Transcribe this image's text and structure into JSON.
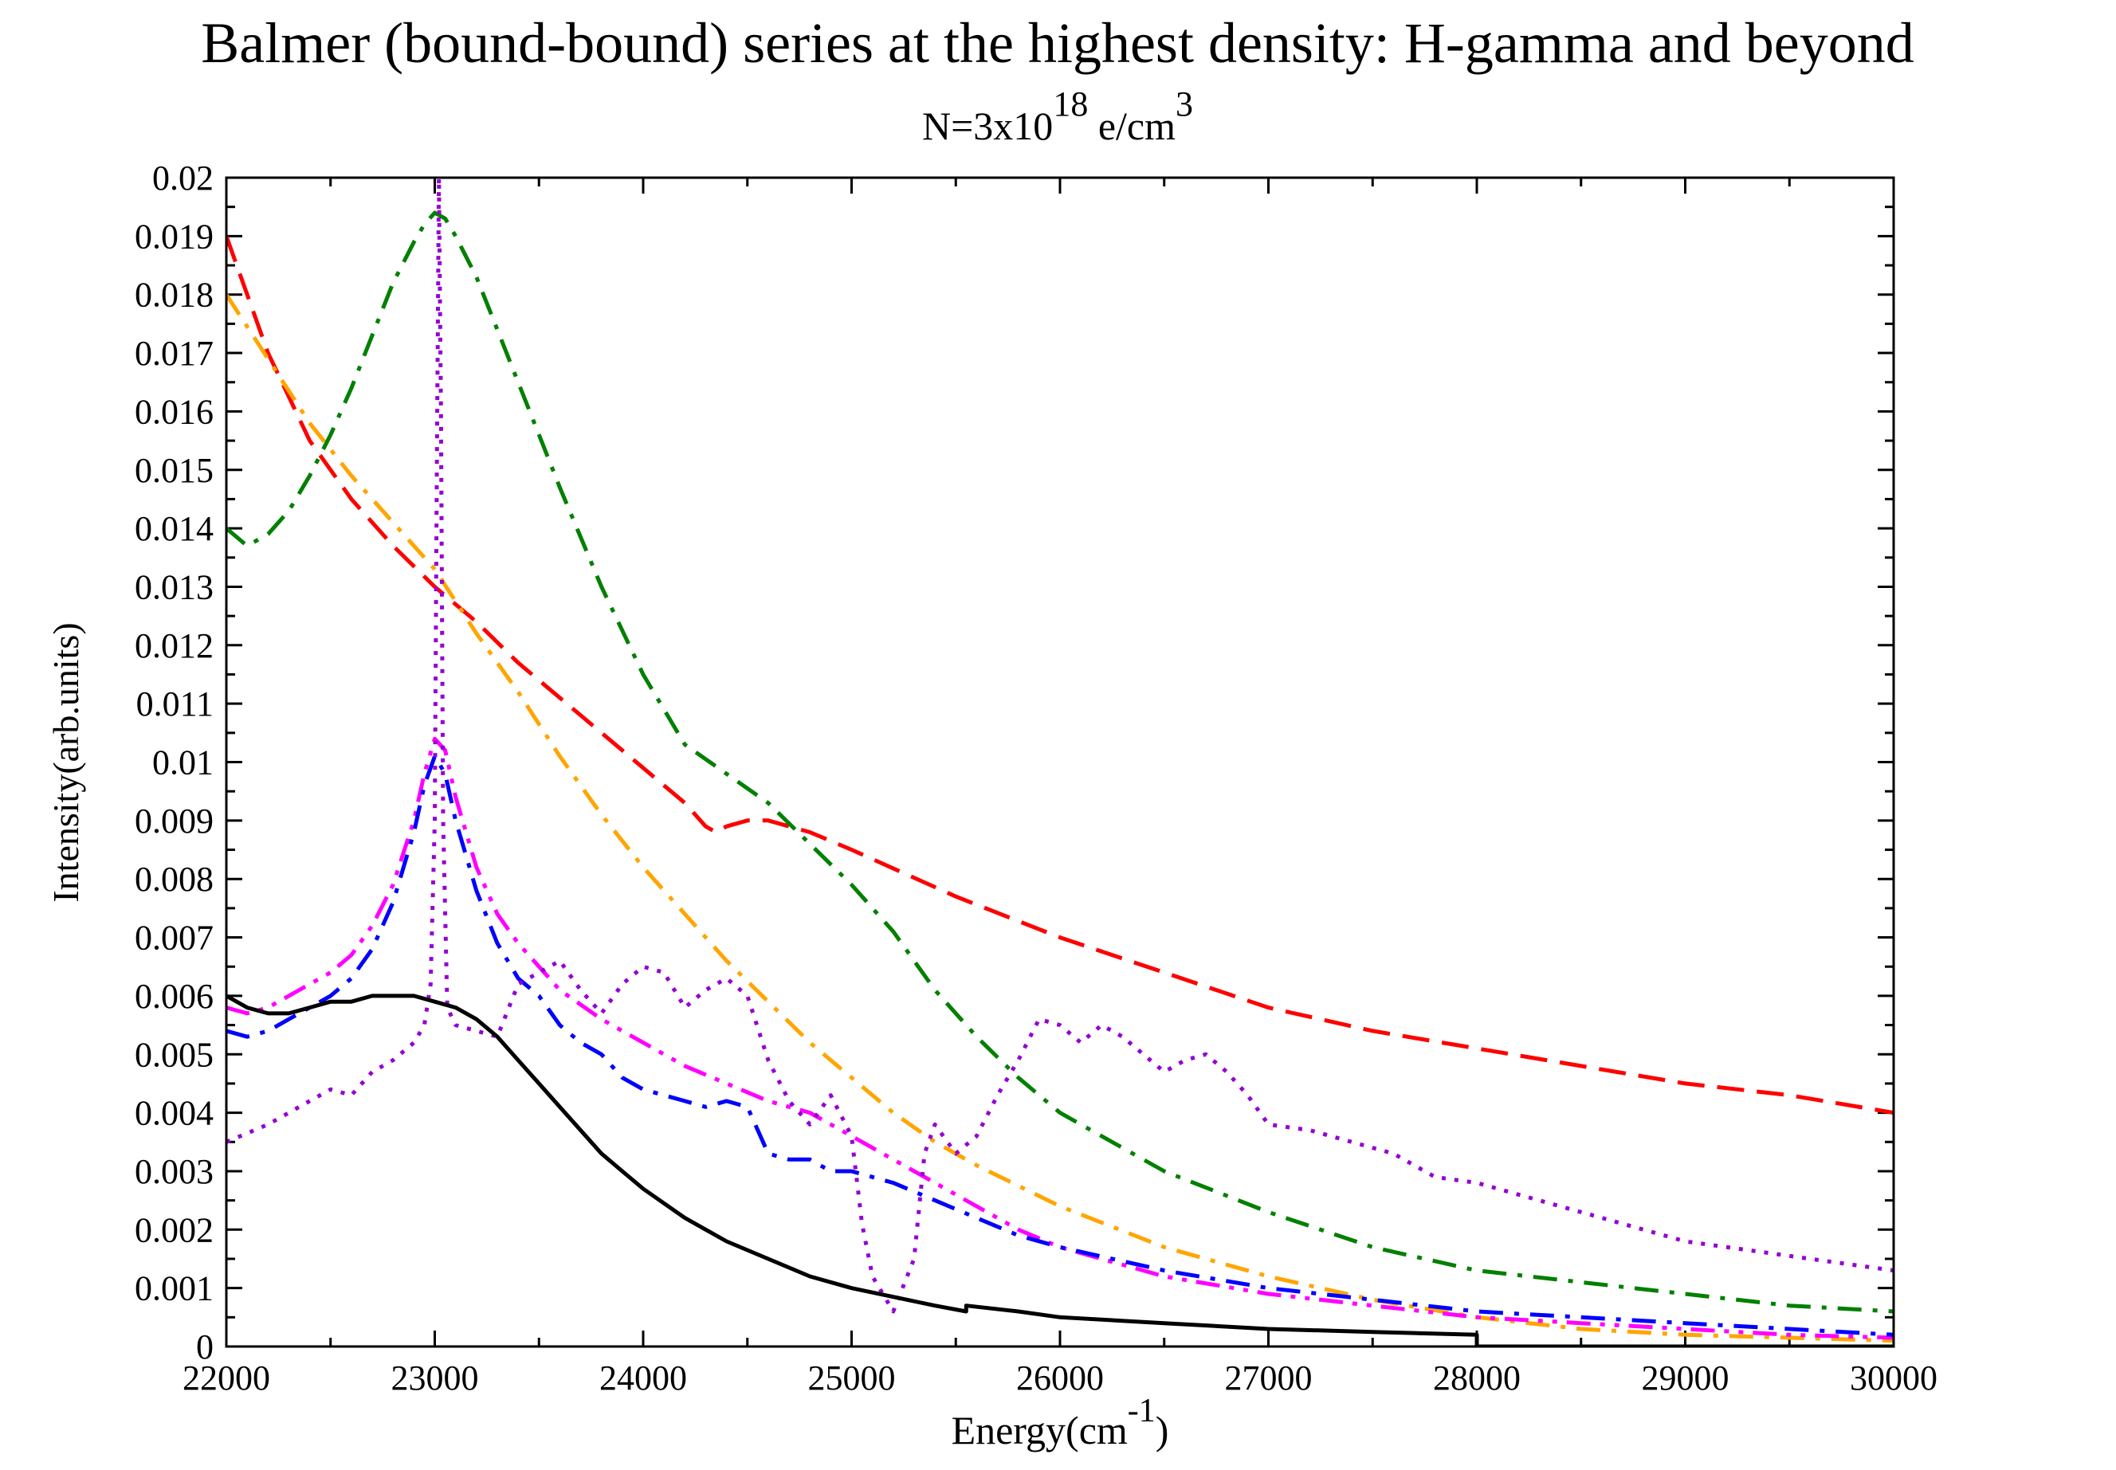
{
  "chart_data": {
    "type": "line",
    "title": "Balmer (bound-bound) series at the highest density: H-gamma and beyond",
    "subtitle": {
      "base": "N=3x10",
      "exp": "18",
      "mid": " e/cm",
      "exp2": "3"
    },
    "xlabel": {
      "base": "Energy(cm",
      "exp": "-1",
      "end": ")"
    },
    "ylabel": "Intensity(arb.units)",
    "xlim": [
      22000,
      30000
    ],
    "ylim": [
      0,
      0.02
    ],
    "xticks": [
      "22000",
      "23000",
      "24000",
      "25000",
      "26000",
      "27000",
      "28000",
      "29000",
      "30000"
    ],
    "yticks": [
      "0",
      "0.001",
      "0.002",
      "0.003",
      "0.004",
      "0.005",
      "0.006",
      "0.007",
      "0.008",
      "0.009",
      "0.01",
      "0.011",
      "0.012",
      "0.013",
      "0.014",
      "0.015",
      "0.016",
      "0.017",
      "0.018",
      "0.019",
      "0.02"
    ],
    "series": [
      {
        "name": "red-dashed",
        "color": "#ff0000",
        "style": "dash",
        "x": [
          22000,
          22200,
          22400,
          22600,
          22800,
          23000,
          23200,
          23400,
          23600,
          23800,
          24000,
          24100,
          24200,
          24300,
          24350,
          24400,
          24500,
          24600,
          24800,
          25000,
          25500,
          26000,
          26500,
          27000,
          27500,
          28000,
          28500,
          29000,
          29500,
          30000
        ],
        "y": [
          0.019,
          0.017,
          0.0155,
          0.0145,
          0.0137,
          0.013,
          0.0124,
          0.0117,
          0.0111,
          0.0105,
          0.0099,
          0.0096,
          0.0093,
          0.0089,
          0.0088,
          0.0089,
          0.009,
          0.009,
          0.0088,
          0.0085,
          0.0077,
          0.007,
          0.0064,
          0.0058,
          0.0054,
          0.0051,
          0.0048,
          0.0045,
          0.0043,
          0.004
        ]
      },
      {
        "name": "orange-dash-dot",
        "color": "#ffa500",
        "style": "dashdot",
        "x": [
          22000,
          22200,
          22400,
          22600,
          22800,
          23000,
          23200,
          23400,
          23600,
          23800,
          24000,
          24200,
          24400,
          24600,
          24800,
          25000,
          25200,
          25400,
          25600,
          26000,
          26500,
          27000,
          27500,
          28000,
          28500,
          29000,
          29500,
          30000
        ],
        "y": [
          0.018,
          0.0169,
          0.0158,
          0.0149,
          0.0141,
          0.0133,
          0.0122,
          0.0112,
          0.0101,
          0.0091,
          0.0082,
          0.0074,
          0.0066,
          0.0059,
          0.0052,
          0.0046,
          0.004,
          0.0035,
          0.0031,
          0.0024,
          0.0017,
          0.0012,
          0.0008,
          0.0005,
          0.0003,
          0.0002,
          0.00015,
          0.0001
        ]
      },
      {
        "name": "green-dash-dot",
        "color": "#008000",
        "style": "dashdot",
        "x": [
          22000,
          22100,
          22200,
          22300,
          22400,
          22500,
          22600,
          22700,
          22800,
          22900,
          22950,
          23000,
          23050,
          23100,
          23200,
          23300,
          23400,
          23500,
          23600,
          23800,
          24000,
          24200,
          24400,
          24600,
          24800,
          25000,
          25200,
          25400,
          25600,
          25800,
          26000,
          26500,
          27000,
          27500,
          28000,
          28500,
          29000,
          29500,
          30000
        ],
        "y": [
          0.014,
          0.0137,
          0.0139,
          0.0143,
          0.0149,
          0.0156,
          0.0164,
          0.0173,
          0.0182,
          0.0189,
          0.0192,
          0.0194,
          0.0193,
          0.019,
          0.0183,
          0.0174,
          0.0165,
          0.0156,
          0.0147,
          0.013,
          0.0115,
          0.0103,
          0.0098,
          0.0093,
          0.0086,
          0.0079,
          0.0071,
          0.0061,
          0.0053,
          0.0046,
          0.004,
          0.003,
          0.0023,
          0.0017,
          0.0013,
          0.0011,
          0.0009,
          0.0007,
          0.0006
        ]
      },
      {
        "name": "magenta-dash-dot-dot",
        "color": "#ff00ff",
        "style": "dashdotdot",
        "x": [
          22000,
          22100,
          22200,
          22300,
          22400,
          22500,
          22600,
          22700,
          22800,
          22900,
          22950,
          23000,
          23050,
          23100,
          23200,
          23300,
          23400,
          23500,
          23600,
          23800,
          24000,
          24200,
          24400,
          24600,
          24800,
          25000,
          25200,
          25400,
          25600,
          25800,
          26000,
          26500,
          27000,
          27500,
          28000,
          28500,
          29000,
          29500,
          30000
        ],
        "y": [
          0.0058,
          0.0057,
          0.0058,
          0.006,
          0.0062,
          0.0064,
          0.0067,
          0.0072,
          0.0079,
          0.009,
          0.0098,
          0.0104,
          0.0102,
          0.0094,
          0.0082,
          0.0074,
          0.0069,
          0.0065,
          0.0061,
          0.0056,
          0.0052,
          0.0048,
          0.0045,
          0.0042,
          0.004,
          0.0036,
          0.0032,
          0.0028,
          0.0024,
          0.002,
          0.0017,
          0.0012,
          0.0009,
          0.0007,
          0.0005,
          0.0004,
          0.0003,
          0.0002,
          0.00015
        ]
      },
      {
        "name": "blue-dash-dot",
        "color": "#0000ff",
        "style": "dashdot",
        "x": [
          22000,
          22100,
          22200,
          22300,
          22400,
          22500,
          22600,
          22700,
          22800,
          22900,
          22950,
          23000,
          23050,
          23100,
          23200,
          23300,
          23400,
          23500,
          23600,
          23700,
          23800,
          23900,
          24000,
          24100,
          24200,
          24300,
          24400,
          24500,
          24600,
          24700,
          24800,
          24900,
          25000,
          25200,
          25400,
          25600,
          25800,
          26000,
          26500,
          27000,
          27500,
          28000,
          28500,
          29000,
          29500,
          30000
        ],
        "y": [
          0.0054,
          0.0053,
          0.0054,
          0.0056,
          0.0058,
          0.006,
          0.0063,
          0.0068,
          0.0076,
          0.0088,
          0.0096,
          0.0101,
          0.0098,
          0.009,
          0.0078,
          0.0069,
          0.0063,
          0.006,
          0.0055,
          0.0052,
          0.005,
          0.0046,
          0.0044,
          0.0043,
          0.0042,
          0.0041,
          0.0042,
          0.0041,
          0.0033,
          0.0032,
          0.0032,
          0.003,
          0.003,
          0.0028,
          0.0025,
          0.0022,
          0.0019,
          0.0017,
          0.0013,
          0.001,
          0.0008,
          0.0006,
          0.0005,
          0.0004,
          0.0003,
          0.0002
        ]
      },
      {
        "name": "purple-dotted",
        "color": "#9400d3",
        "style": "dot",
        "x": [
          22000,
          22200,
          22400,
          22500,
          22600,
          22700,
          22800,
          22900,
          22950,
          22980,
          23000,
          23010,
          23020,
          23030,
          23040,
          23060,
          23100,
          23200,
          23300,
          23400,
          23500,
          23600,
          23700,
          23800,
          23900,
          24000,
          24100,
          24200,
          24300,
          24400,
          24500,
          24600,
          24700,
          24800,
          24900,
          25000,
          25050,
          25100,
          25200,
          25300,
          25350,
          25400,
          25500,
          25600,
          25700,
          25800,
          25900,
          26000,
          26100,
          26200,
          26300,
          26400,
          26500,
          26600,
          26700,
          26800,
          26900,
          27000,
          27200,
          27400,
          27600,
          27800,
          28000,
          28200,
          28400,
          28600,
          28800,
          29000,
          29200,
          29400,
          29600,
          29800,
          30000
        ],
        "y": [
          0.0035,
          0.0038,
          0.0042,
          0.0044,
          0.0043,
          0.0047,
          0.0049,
          0.0052,
          0.0055,
          0.0062,
          0.009,
          0.015,
          0.02,
          0.016,
          0.009,
          0.0058,
          0.0055,
          0.0054,
          0.0053,
          0.0062,
          0.0064,
          0.0066,
          0.0061,
          0.0057,
          0.0062,
          0.0065,
          0.0064,
          0.0058,
          0.0061,
          0.0063,
          0.006,
          0.0049,
          0.0042,
          0.0038,
          0.0043,
          0.0036,
          0.0021,
          0.0012,
          0.0006,
          0.0015,
          0.0033,
          0.0038,
          0.0033,
          0.0036,
          0.0043,
          0.0049,
          0.0056,
          0.0055,
          0.0052,
          0.0055,
          0.0053,
          0.005,
          0.0047,
          0.0049,
          0.005,
          0.0047,
          0.0043,
          0.0038,
          0.0037,
          0.0035,
          0.0033,
          0.0029,
          0.0028,
          0.0026,
          0.0024,
          0.0022,
          0.002,
          0.0018,
          0.0017,
          0.0016,
          0.0015,
          0.0014,
          0.0013
        ]
      },
      {
        "name": "black-solid",
        "color": "#000000",
        "style": "solid",
        "x": [
          22000,
          22100,
          22200,
          22300,
          22400,
          22500,
          22600,
          22700,
          22800,
          22900,
          23000,
          23100,
          23200,
          23300,
          23400,
          23500,
          23600,
          23700,
          23800,
          23900,
          24000,
          24200,
          24400,
          24600,
          24800,
          25000,
          25200,
          25400,
          25550,
          25550,
          25800,
          26000,
          26500,
          27000,
          27500,
          28000,
          28000,
          28100,
          29000,
          30000
        ],
        "y": [
          0.006,
          0.0058,
          0.0057,
          0.0057,
          0.0058,
          0.0059,
          0.0059,
          0.006,
          0.006,
          0.006,
          0.0059,
          0.0058,
          0.0056,
          0.0053,
          0.0049,
          0.0045,
          0.0041,
          0.0037,
          0.0033,
          0.003,
          0.0027,
          0.0022,
          0.0018,
          0.0015,
          0.0012,
          0.001,
          0.00085,
          0.0007,
          0.0006,
          0.0007,
          0.0006,
          0.0005,
          0.0004,
          0.0003,
          0.00025,
          0.0002,
          0.0,
          0.0,
          0.0,
          0.0
        ]
      }
    ]
  }
}
